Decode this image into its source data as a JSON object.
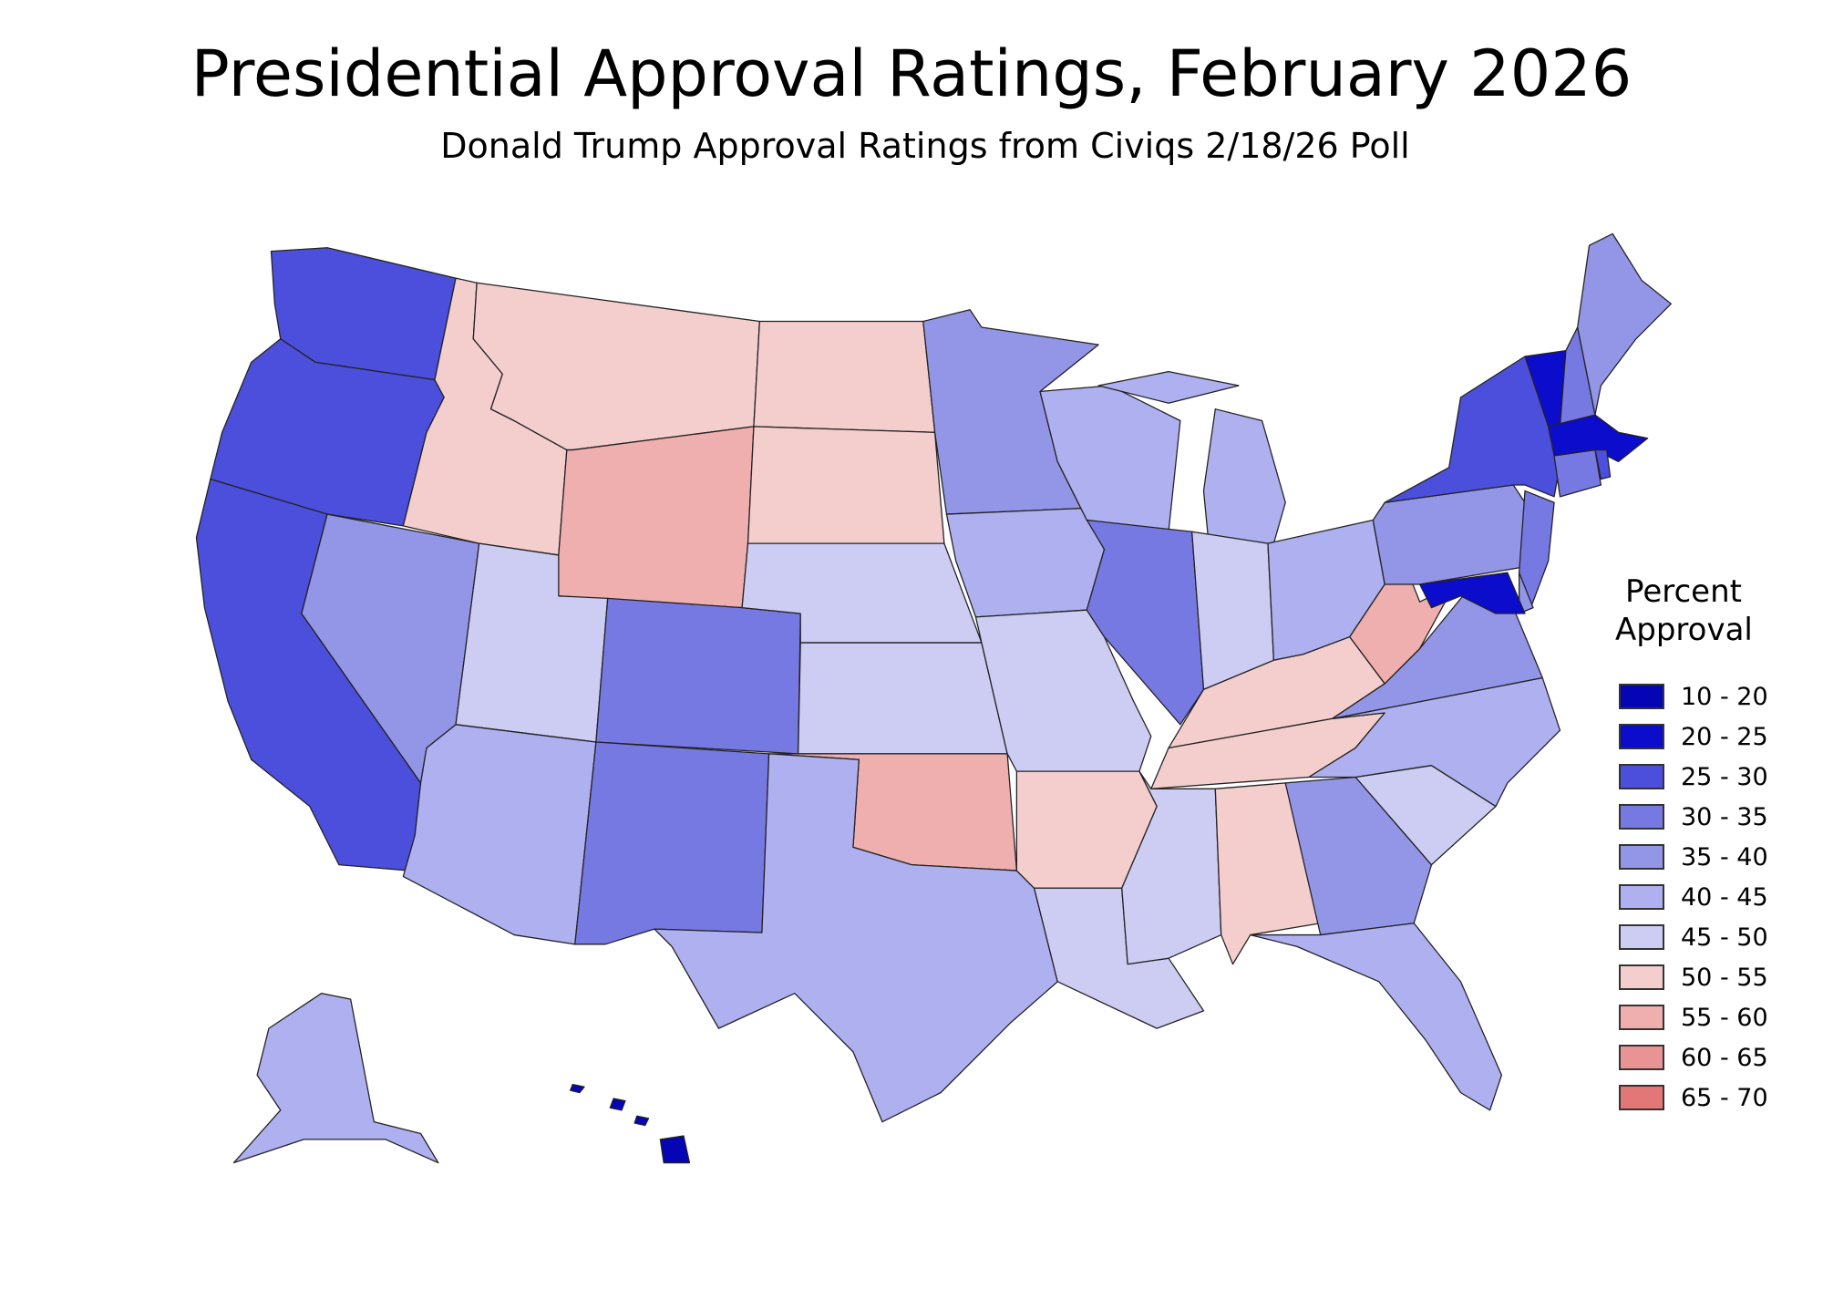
{
  "title": "Presidential Approval Ratings, February 2026",
  "subtitle": "Donald Trump Approval Ratings from Civiqs 2/18/26 Poll",
  "legend": {
    "title_line1": "Percent",
    "title_line2": "Approval",
    "bins": [
      {
        "label": "10 - 20",
        "color": "#0505b5"
      },
      {
        "label": "20 - 25",
        "color": "#0c0ccc"
      },
      {
        "label": "25 - 30",
        "color": "#4b4fdb"
      },
      {
        "label": "30 - 35",
        "color": "#7779e2"
      },
      {
        "label": "35 - 40",
        "color": "#9396e6"
      },
      {
        "label": "40 - 45",
        "color": "#aeb0f0"
      },
      {
        "label": "45 - 50",
        "color": "#cdcdf4"
      },
      {
        "label": "50 - 55",
        "color": "#f4cdcd"
      },
      {
        "label": "55 - 60",
        "color": "#efafaf"
      },
      {
        "label": "60 - 65",
        "color": "#e99494"
      },
      {
        "label": "65 - 70",
        "color": "#e37777"
      }
    ]
  },
  "map_data": {
    "type": "choropleth",
    "state_bins": {
      "WA": "25 - 30",
      "OR": "25 - 30",
      "CA": "25 - 30",
      "NV": "35 - 40",
      "ID": "50 - 55",
      "MT": "50 - 55",
      "WY": "55 - 60",
      "UT": "45 - 50",
      "AZ": "40 - 45",
      "CO": "30 - 35",
      "NM": "30 - 35",
      "ND": "50 - 55",
      "SD": "50 - 55",
      "NE": "45 - 50",
      "KS": "45 - 50",
      "OK": "55 - 60",
      "TX": "40 - 45",
      "MN": "35 - 40",
      "IA": "40 - 45",
      "MO": "45 - 50",
      "AR": "50 - 55",
      "LA": "45 - 50",
      "WI": "40 - 45",
      "IL": "30 - 35",
      "MI": "40 - 45",
      "IN": "45 - 50",
      "OH": "40 - 45",
      "KY": "50 - 55",
      "TN": "50 - 55",
      "MS": "45 - 50",
      "AL": "50 - 55",
      "GA": "35 - 40",
      "FL": "40 - 45",
      "SC": "45 - 50",
      "NC": "40 - 45",
      "VA": "35 - 40",
      "WV": "55 - 60",
      "PA": "35 - 40",
      "NY": "25 - 30",
      "VT": "20 - 25",
      "NH": "30 - 35",
      "ME": "35 - 40",
      "MA": "20 - 25",
      "CT": "30 - 35",
      "RI": "25 - 30",
      "NJ": "30 - 35",
      "DE": "35 - 40",
      "MD": "20 - 25",
      "AK": "40 - 45",
      "HI": "10 - 20"
    }
  }
}
